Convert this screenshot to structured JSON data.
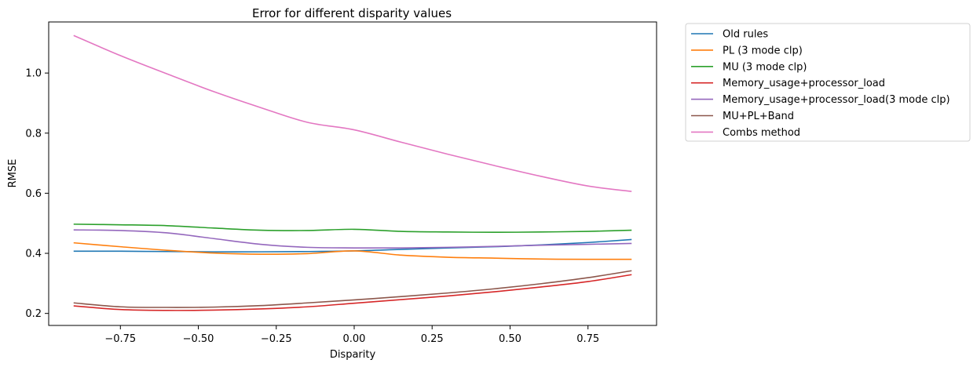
{
  "chart_data": {
    "type": "line",
    "title": "Error for different disparity values",
    "xlabel": "Disparity",
    "ylabel": "RMSE",
    "xlim": [
      -0.98,
      0.97
    ],
    "ylim": [
      0.16,
      1.17
    ],
    "xticks": [
      -0.75,
      -0.5,
      -0.25,
      0.0,
      0.25,
      0.5,
      0.75
    ],
    "xtick_labels": [
      "−0.75",
      "−0.50",
      "−0.25",
      "0.00",
      "0.25",
      "0.50",
      "0.75"
    ],
    "yticks": [
      0.2,
      0.4,
      0.6,
      0.8,
      1.0
    ],
    "ytick_labels": [
      "0.2",
      "0.4",
      "0.6",
      "0.8",
      "1.0"
    ],
    "grid": false,
    "legend_position": "outside-top-right",
    "x": [
      -0.9,
      -0.75,
      -0.6,
      -0.45,
      -0.3,
      -0.15,
      0.0,
      0.15,
      0.3,
      0.45,
      0.6,
      0.75,
      0.89
    ],
    "series": [
      {
        "name": "Old rules",
        "color": "#1f77b4",
        "values": [
          0.407,
          0.407,
          0.406,
          0.405,
          0.405,
          0.406,
          0.408,
          0.413,
          0.418,
          0.422,
          0.428,
          0.436,
          0.446
        ]
      },
      {
        "name": "PL (3 mode clp)",
        "color": "#ff7f0e",
        "values": [
          0.435,
          0.422,
          0.41,
          0.401,
          0.397,
          0.399,
          0.408,
          0.394,
          0.387,
          0.384,
          0.381,
          0.38,
          0.38
        ]
      },
      {
        "name": "MU (3 mode clp)",
        "color": "#2ca02c",
        "values": [
          0.497,
          0.495,
          0.492,
          0.484,
          0.477,
          0.476,
          0.48,
          0.473,
          0.471,
          0.47,
          0.471,
          0.473,
          0.477
        ]
      },
      {
        "name": "Memory_usage+processor_load",
        "color": "#d62728",
        "values": [
          0.225,
          0.213,
          0.21,
          0.211,
          0.215,
          0.222,
          0.234,
          0.246,
          0.258,
          0.272,
          0.288,
          0.306,
          0.329
        ]
      },
      {
        "name": "Memory_usage+processor_load(3 mode clp)",
        "color": "#9467bd",
        "values": [
          0.478,
          0.476,
          0.468,
          0.449,
          0.43,
          0.42,
          0.418,
          0.418,
          0.42,
          0.423,
          0.427,
          0.43,
          0.433
        ]
      },
      {
        "name": "MU+PL+Band",
        "color": "#8c564b",
        "values": [
          0.235,
          0.222,
          0.22,
          0.221,
          0.226,
          0.235,
          0.245,
          0.256,
          0.268,
          0.282,
          0.299,
          0.319,
          0.342
        ]
      },
      {
        "name": "Combs method",
        "color": "#e377c2",
        "values": [
          1.125,
          1.058,
          0.997,
          0.938,
          0.885,
          0.836,
          0.811,
          0.77,
          0.73,
          0.692,
          0.656,
          0.624,
          0.606
        ]
      }
    ]
  }
}
